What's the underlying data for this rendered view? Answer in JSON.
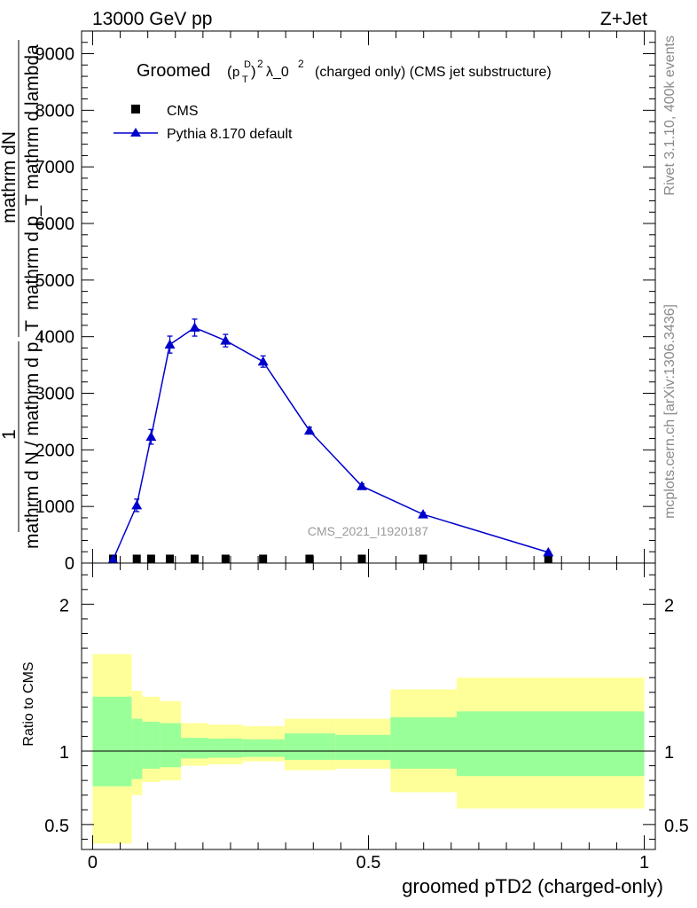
{
  "header": {
    "energy": "13000 GeV pp",
    "process": "Z+Jet"
  },
  "side_labels": {
    "rivet": "Rivet 3.1.10,  400k events",
    "mcplots": "mcplots.cern.ch [arXiv:1306.3436]"
  },
  "watermark": "CMS_2021_I1920187",
  "colors": {
    "pythia": "#0000cc",
    "band_inner": "#99ff99",
    "band_outer": "#ffff99"
  },
  "chart_data": [
    {
      "type": "line",
      "title": "Groomed (p_T^D)^2 λ_0^2  (charged only) (CMS jet substructure)",
      "title_parts": {
        "prefix": "Groomed",
        "p": "p",
        "sup_d": "D",
        "sub_t": "T",
        "pow": "2",
        "lambda": "λ_0",
        "lambda_pow": "2",
        "rest": "(charged only) (CMS jet substructure)"
      },
      "ylabel_numerator": "mathrm dN",
      "ylabel_denominator": "mathrm d p_T mathrm d lambda",
      "ylabel_prefix_numerator": "1",
      "ylabel_prefix_denominator": "mathrm d N / mathrm d p_T",
      "ylim": [
        0,
        9400
      ],
      "xlim": [
        -0.02,
        1.02
      ],
      "yticks": [
        0,
        1000,
        2000,
        3000,
        4000,
        5000,
        6000,
        7000,
        8000,
        9000
      ],
      "ytick_labels": [
        "0",
        "1000",
        "2000",
        "3000",
        "4000",
        "5000",
        "6000",
        "7000",
        "8000",
        "9000"
      ],
      "series": [
        {
          "name": "CMS",
          "marker": "square",
          "x": [
            0.037,
            0.08,
            0.106,
            0.14,
            0.185,
            0.241,
            0.309,
            0.393,
            0.488,
            0.599,
            0.826
          ],
          "y": [
            10,
            15,
            15,
            15,
            15,
            15,
            15,
            12,
            10,
            8,
            5
          ]
        },
        {
          "name": "Pythia 8.170 default",
          "marker": "triangle",
          "x": [
            0.037,
            0.08,
            0.106,
            0.14,
            0.185,
            0.241,
            0.309,
            0.393,
            0.488,
            0.599,
            0.826
          ],
          "y": [
            60,
            1020,
            2230,
            3860,
            4160,
            3930,
            3560,
            2340,
            1360,
            860,
            190
          ],
          "yerr": [
            20,
            110,
            130,
            150,
            150,
            110,
            100,
            60,
            40,
            30,
            20
          ]
        }
      ]
    },
    {
      "type": "area",
      "ylabel": "Ratio to CMS",
      "xlabel": "groomed pTD2 (charged-only)",
      "ylim": [
        0.33,
        2.28
      ],
      "xlim": [
        -0.02,
        1.02
      ],
      "yticks": [
        0.5,
        1,
        2
      ],
      "ytick_labels": [
        "0.5",
        "1",
        "2"
      ],
      "xticks": [
        0,
        0.5,
        1
      ],
      "xtick_labels": [
        "0",
        "0.5",
        "1"
      ],
      "reference": 1,
      "bins": [
        {
          "lo": 0.0,
          "hi": 0.071,
          "inner": [
            0.76,
            1.37
          ],
          "outer": [
            0.37,
            1.66
          ]
        },
        {
          "lo": 0.071,
          "hi": 0.09,
          "inner": [
            0.81,
            1.22
          ],
          "outer": [
            0.7,
            1.41
          ]
        },
        {
          "lo": 0.09,
          "hi": 0.122,
          "inner": [
            0.88,
            1.2
          ],
          "outer": [
            0.79,
            1.37
          ]
        },
        {
          "lo": 0.122,
          "hi": 0.16,
          "inner": [
            0.89,
            1.19
          ],
          "outer": [
            0.8,
            1.34
          ]
        },
        {
          "lo": 0.16,
          "hi": 0.21,
          "inner": [
            0.95,
            1.09
          ],
          "outer": [
            0.9,
            1.19
          ]
        },
        {
          "lo": 0.21,
          "hi": 0.272,
          "inner": [
            0.955,
            1.085
          ],
          "outer": [
            0.91,
            1.18
          ]
        },
        {
          "lo": 0.272,
          "hi": 0.348,
          "inner": [
            0.96,
            1.08
          ],
          "outer": [
            0.93,
            1.17
          ]
        },
        {
          "lo": 0.348,
          "hi": 0.44,
          "inner": [
            0.94,
            1.12
          ],
          "outer": [
            0.87,
            1.22
          ]
        },
        {
          "lo": 0.44,
          "hi": 0.54,
          "inner": [
            0.94,
            1.11
          ],
          "outer": [
            0.88,
            1.22
          ]
        },
        {
          "lo": 0.54,
          "hi": 0.66,
          "inner": [
            0.88,
            1.23
          ],
          "outer": [
            0.72,
            1.42
          ]
        },
        {
          "lo": 0.66,
          "hi": 1.0,
          "inner": [
            0.83,
            1.27
          ],
          "outer": [
            0.61,
            1.5
          ]
        }
      ]
    }
  ]
}
